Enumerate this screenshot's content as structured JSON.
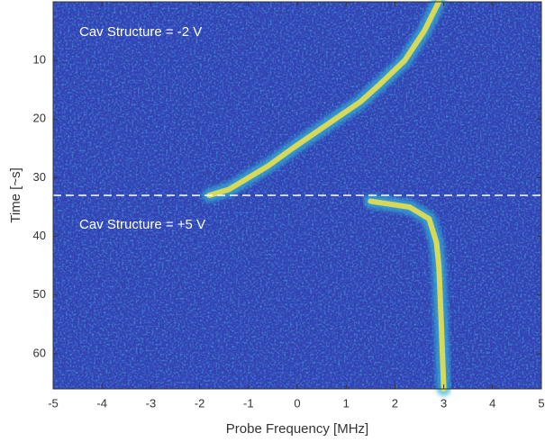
{
  "chart_data": {
    "type": "line",
    "xlabel": "Probe Frequency [MHz]",
    "ylabel": "Time [~s]",
    "xlim": [
      -5,
      5
    ],
    "ylim": [
      0,
      66
    ],
    "y_reversed": true,
    "xticks": [
      -5,
      -4,
      -3,
      -2,
      -1,
      0,
      1,
      2,
      3,
      4,
      5
    ],
    "yticks": [
      10,
      20,
      30,
      40,
      50,
      60
    ],
    "background": "#3242b4",
    "series": [
      {
        "color": "#f2e444",
        "x": [
          2.9,
          2.6,
          2.2,
          1.7,
          1.3,
          0.6,
          -0.1,
          -0.6,
          -1.0,
          -1.4,
          -1.8
        ],
        "values": [
          0,
          5,
          10,
          14,
          17,
          21,
          25,
          28,
          30,
          32,
          33
        ]
      },
      {
        "color": "#f2e444",
        "x": [
          1.5,
          2.3,
          2.7,
          2.85,
          2.9,
          2.95,
          3.0
        ],
        "values": [
          34,
          35,
          37,
          41,
          45,
          55,
          66
        ]
      }
    ],
    "hline": {
      "value": 33,
      "color": "#ffffff"
    },
    "annotations": [
      {
        "text": "Cav Structure = -2 V"
      },
      {
        "text": "Cav Structure = +5 V"
      }
    ]
  }
}
